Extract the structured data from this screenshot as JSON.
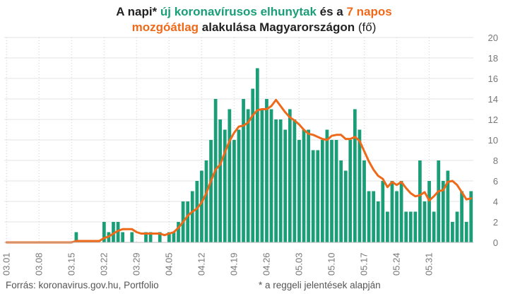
{
  "title": {
    "part1": "A napi* ",
    "part2": "új koronavírusos elhunytak",
    "part3": " és a ",
    "part4": "7 napos",
    "part5": "mozgóátlag",
    "part6": " alakulása Magyarországon ",
    "part7": "(fő)"
  },
  "footer": {
    "source": "Forrás: koronavirus.gov.hu, Portfolio",
    "note": "* a reggeli jelentések alapján"
  },
  "colors": {
    "bars": "#1a9e78",
    "line": "#ee6a1a",
    "grid": "#e3e3e3",
    "text": "#777777"
  },
  "chart_data": {
    "type": "bar",
    "ylim": [
      0,
      20
    ],
    "yticks": [
      0,
      2,
      4,
      6,
      8,
      10,
      12,
      14,
      16,
      18,
      20
    ],
    "xtick_labels": [
      "03.01",
      "03.08",
      "03.15",
      "03.22",
      "03.29",
      "04.05",
      "04.12",
      "04.19",
      "04.26",
      "05.03",
      "05.10",
      "05.17",
      "05.24",
      "05.31"
    ],
    "xtick_every": 7,
    "series": [
      {
        "name": "új koronavírusos elhunytak",
        "type": "bar",
        "values": [
          0,
          0,
          0,
          0,
          0,
          0,
          0,
          0,
          0,
          0,
          0,
          0,
          0,
          0,
          0,
          1,
          0,
          0,
          0,
          0,
          0,
          2,
          1,
          2,
          2,
          1,
          0,
          1,
          0,
          0,
          1,
          1,
          0,
          1,
          0,
          1,
          1,
          2,
          4,
          4,
          5,
          6,
          7,
          8,
          10,
          14,
          12,
          11,
          13,
          10,
          11,
          14,
          13,
          15,
          17,
          13,
          14,
          13,
          12,
          12,
          11,
          13,
          12,
          10,
          11,
          11,
          9,
          9,
          10,
          11,
          10,
          10,
          8,
          7,
          10,
          13,
          11,
          8,
          5,
          5,
          4,
          6,
          3,
          6,
          5,
          6,
          3,
          3,
          3,
          8,
          4,
          6,
          3,
          8,
          6,
          7,
          2,
          3,
          5,
          2,
          5
        ],
        "unit": "fő"
      },
      {
        "name": "7 napos mozgóátlag",
        "type": "line",
        "values": [
          0,
          0,
          0,
          0,
          0,
          0,
          0,
          0,
          0,
          0,
          0,
          0,
          0,
          0,
          0,
          0.14,
          0.14,
          0.14,
          0.14,
          0.14,
          0.14,
          0.43,
          0.57,
          0.86,
          1.14,
          1.29,
          1.29,
          1.29,
          1,
          0.86,
          0.86,
          0.86,
          0.86,
          0.86,
          0.71,
          0.86,
          1,
          1.43,
          2,
          2.6,
          3,
          3.3,
          3.9,
          4.8,
          6,
          7.1,
          7.6,
          8.8,
          9.9,
          10.7,
          11.3,
          11.4,
          11.7,
          12.4,
          12.9,
          13,
          13,
          13.3,
          13.9,
          13.3,
          12.7,
          12.2,
          11.9,
          11.5,
          11,
          10.6,
          10.5,
          10.3,
          10.1,
          10,
          10.4,
          10.5,
          10.5,
          10.1,
          10.1,
          10.3,
          9.9,
          8.9,
          7.9,
          7.1,
          6.5,
          6.2,
          5.4,
          5.9,
          5.6,
          5.9,
          5.3,
          4.8,
          4.5,
          4.6,
          4.9,
          4.1,
          4.5,
          5,
          5.1,
          5.9,
          6,
          5.6,
          4.9,
          4.2,
          4.3
        ],
        "unit": "fő"
      }
    ]
  }
}
